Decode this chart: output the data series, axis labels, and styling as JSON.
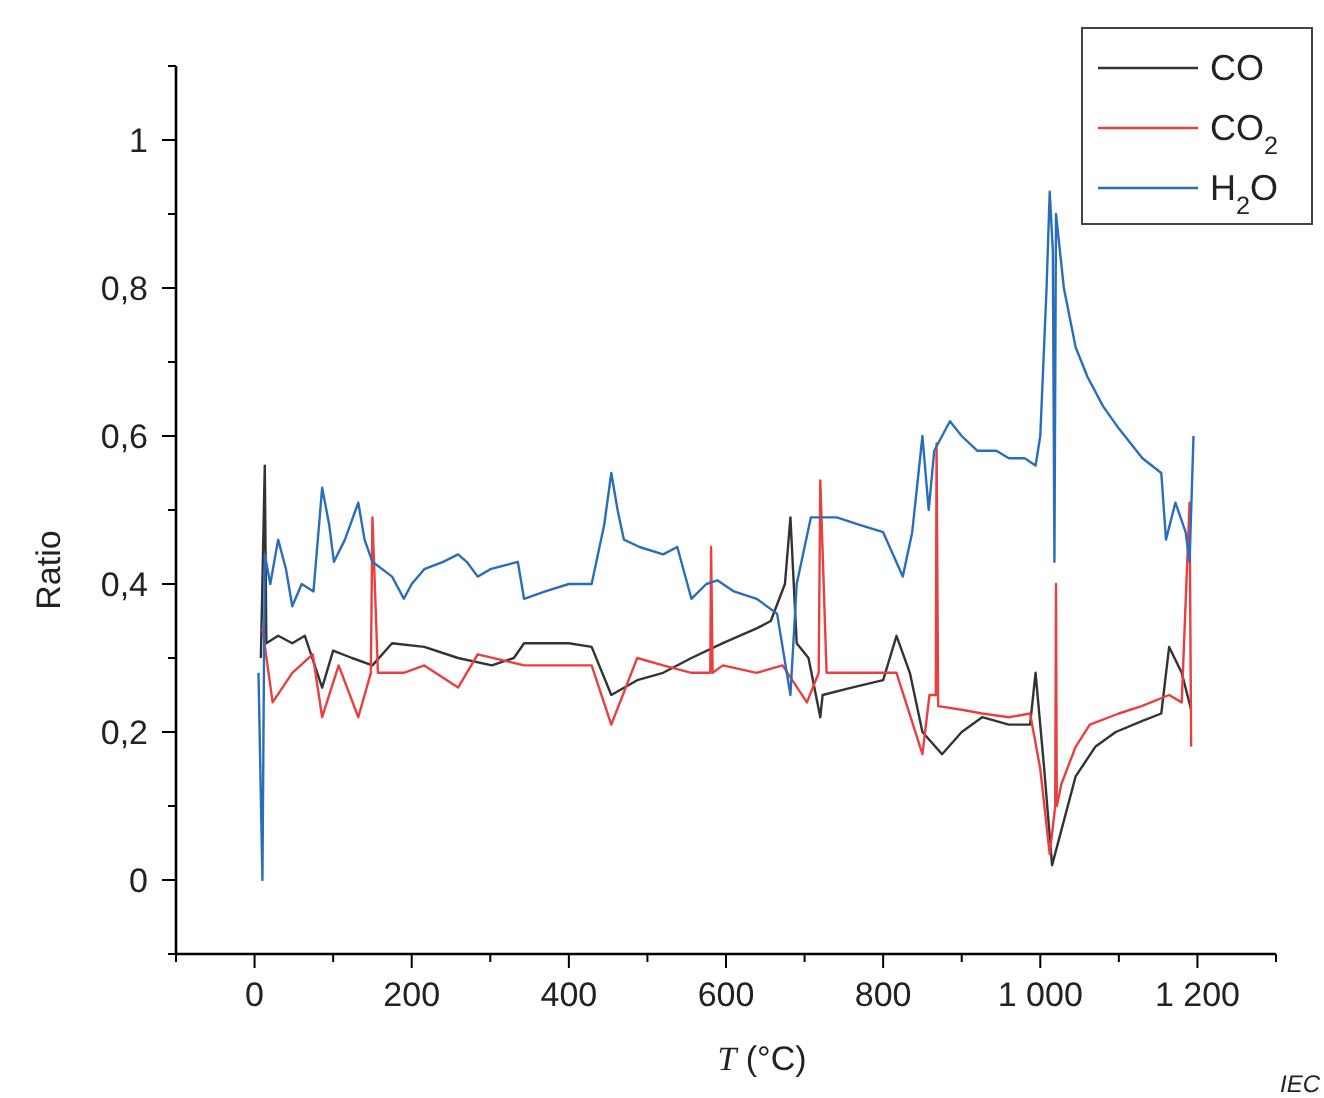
{
  "chart_data": {
    "type": "line",
    "xlabel": "T (°C)",
    "ylabel": "Ratio",
    "xlim": [
      -100,
      1300
    ],
    "ylim": [
      -0.1,
      1.1
    ],
    "xticks": [
      {
        "value": -100,
        "label": null
      },
      0,
      {
        "value": 100,
        "label": null
      },
      200,
      {
        "value": 300,
        "label": null
      },
      400,
      {
        "value": 500,
        "label": null
      },
      600,
      {
        "value": 700,
        "label": null
      },
      800,
      {
        "value": 900,
        "label": null
      },
      {
        "value": 1000,
        "label": "1 000"
      },
      {
        "value": 1100,
        "label": null
      },
      {
        "value": 1200,
        "label": "1 200"
      },
      {
        "value": 1300,
        "label": null
      }
    ],
    "yticks": [
      {
        "value": -0.1,
        "label": null
      },
      0,
      {
        "value": 0.1,
        "label": null
      },
      {
        "value": 0.2,
        "label": "0,2"
      },
      {
        "value": 0.3,
        "label": null
      },
      {
        "value": 0.4,
        "label": "0,4"
      },
      {
        "value": 0.5,
        "label": null
      },
      {
        "value": 0.6,
        "label": "0,6"
      },
      {
        "value": 0.7,
        "label": null
      },
      {
        "value": 0.8,
        "label": "0,8"
      },
      {
        "value": 0.9,
        "label": null
      },
      1,
      {
        "value": 1.1,
        "label": null
      }
    ],
    "grid": false,
    "legend": "top right",
    "annotations": [
      "IEC"
    ],
    "series": [
      {
        "name": "CO",
        "color": "#333333",
        "x": [
          8,
          13,
          15,
          30,
          48,
          64,
          86,
          100,
          124,
          150,
          175,
          216,
          259,
          302,
          330,
          343,
          400,
          429,
          454,
          487,
          520,
          556,
          596,
          639,
          657,
          675,
          682,
          690,
          705,
          720,
          723,
          760,
          800,
          817,
          834,
          850,
          875,
          900,
          926,
          960,
          987,
          994,
          1005,
          1015,
          1025,
          1045,
          1070,
          1096,
          1130,
          1154,
          1164,
          1180,
          1192
        ],
        "values": [
          0.3,
          0.56,
          0.32,
          0.33,
          0.32,
          0.33,
          0.26,
          0.31,
          0.3,
          0.29,
          0.32,
          0.315,
          0.3,
          0.29,
          0.3,
          0.32,
          0.32,
          0.315,
          0.25,
          0.27,
          0.28,
          0.3,
          0.32,
          0.34,
          0.35,
          0.4,
          0.49,
          0.32,
          0.3,
          0.22,
          0.25,
          0.26,
          0.27,
          0.33,
          0.28,
          0.2,
          0.17,
          0.2,
          0.22,
          0.21,
          0.21,
          0.28,
          0.15,
          0.02,
          0.06,
          0.14,
          0.18,
          0.2,
          0.215,
          0.225,
          0.315,
          0.28,
          0.23
        ]
      },
      {
        "name": "CO$_{2}$",
        "color": "#e8403f",
        "x": [
          10,
          23,
          48,
          74,
          86,
          107,
          132,
          148,
          150,
          157,
          190,
          216,
          259,
          284,
          343,
          400,
          429,
          454,
          487,
          520,
          556,
          580,
          581,
          583,
          596,
          639,
          672,
          703,
          718,
          720,
          728,
          770,
          817,
          850,
          859,
          867,
          868,
          870,
          900,
          926,
          960,
          987,
          1000,
          1012,
          1019,
          1020,
          1021,
          1027,
          1045,
          1063,
          1100,
          1129,
          1164,
          1180,
          1190,
          1192
        ],
        "values": [
          0.34,
          0.24,
          0.28,
          0.305,
          0.22,
          0.29,
          0.22,
          0.28,
          0.49,
          0.28,
          0.28,
          0.29,
          0.26,
          0.305,
          0.29,
          0.29,
          0.29,
          0.21,
          0.3,
          0.29,
          0.28,
          0.28,
          0.45,
          0.28,
          0.29,
          0.28,
          0.29,
          0.24,
          0.28,
          0.54,
          0.28,
          0.28,
          0.28,
          0.17,
          0.25,
          0.25,
          0.59,
          0.235,
          0.23,
          0.225,
          0.22,
          0.225,
          0.15,
          0.035,
          0.1,
          0.4,
          0.1,
          0.13,
          0.18,
          0.21,
          0.225,
          0.235,
          0.25,
          0.24,
          0.51,
          0.18
        ]
      },
      {
        "name": "H$_{2}$O",
        "color": "#2a6ebb",
        "x": [
          5,
          10,
          13,
          20,
          30,
          40,
          48,
          60,
          75,
          86,
          95,
          101,
          115,
          132,
          140,
          150,
          175,
          190,
          200,
          216,
          240,
          259,
          270,
          284,
          300,
          335,
          343,
          370,
          400,
          429,
          445,
          454,
          462,
          470,
          490,
          520,
          538,
          556,
          575,
          589,
          610,
          639,
          665,
          682,
          690,
          708,
          741,
          770,
          800,
          825,
          837,
          850,
          858,
          865,
          885,
          900,
          920,
          944,
          960,
          980,
          994,
          1000,
          1008,
          1012,
          1016,
          1018,
          1020,
          1030,
          1045,
          1060,
          1080,
          1100,
          1130,
          1154,
          1160,
          1172,
          1185,
          1190,
          1195
        ],
        "values": [
          0.28,
          0.0,
          0.44,
          0.4,
          0.46,
          0.42,
          0.37,
          0.4,
          0.39,
          0.53,
          0.48,
          0.43,
          0.46,
          0.51,
          0.46,
          0.43,
          0.41,
          0.38,
          0.4,
          0.42,
          0.43,
          0.44,
          0.43,
          0.41,
          0.42,
          0.43,
          0.38,
          0.39,
          0.4,
          0.4,
          0.48,
          0.55,
          0.5,
          0.46,
          0.45,
          0.44,
          0.45,
          0.38,
          0.4,
          0.405,
          0.39,
          0.38,
          0.36,
          0.25,
          0.4,
          0.49,
          0.49,
          0.48,
          0.47,
          0.41,
          0.47,
          0.6,
          0.5,
          0.58,
          0.62,
          0.6,
          0.58,
          0.58,
          0.57,
          0.57,
          0.56,
          0.6,
          0.8,
          0.93,
          0.85,
          0.43,
          0.9,
          0.8,
          0.72,
          0.68,
          0.64,
          0.61,
          0.57,
          0.55,
          0.46,
          0.51,
          0.47,
          0.43,
          0.6
        ]
      }
    ]
  }
}
